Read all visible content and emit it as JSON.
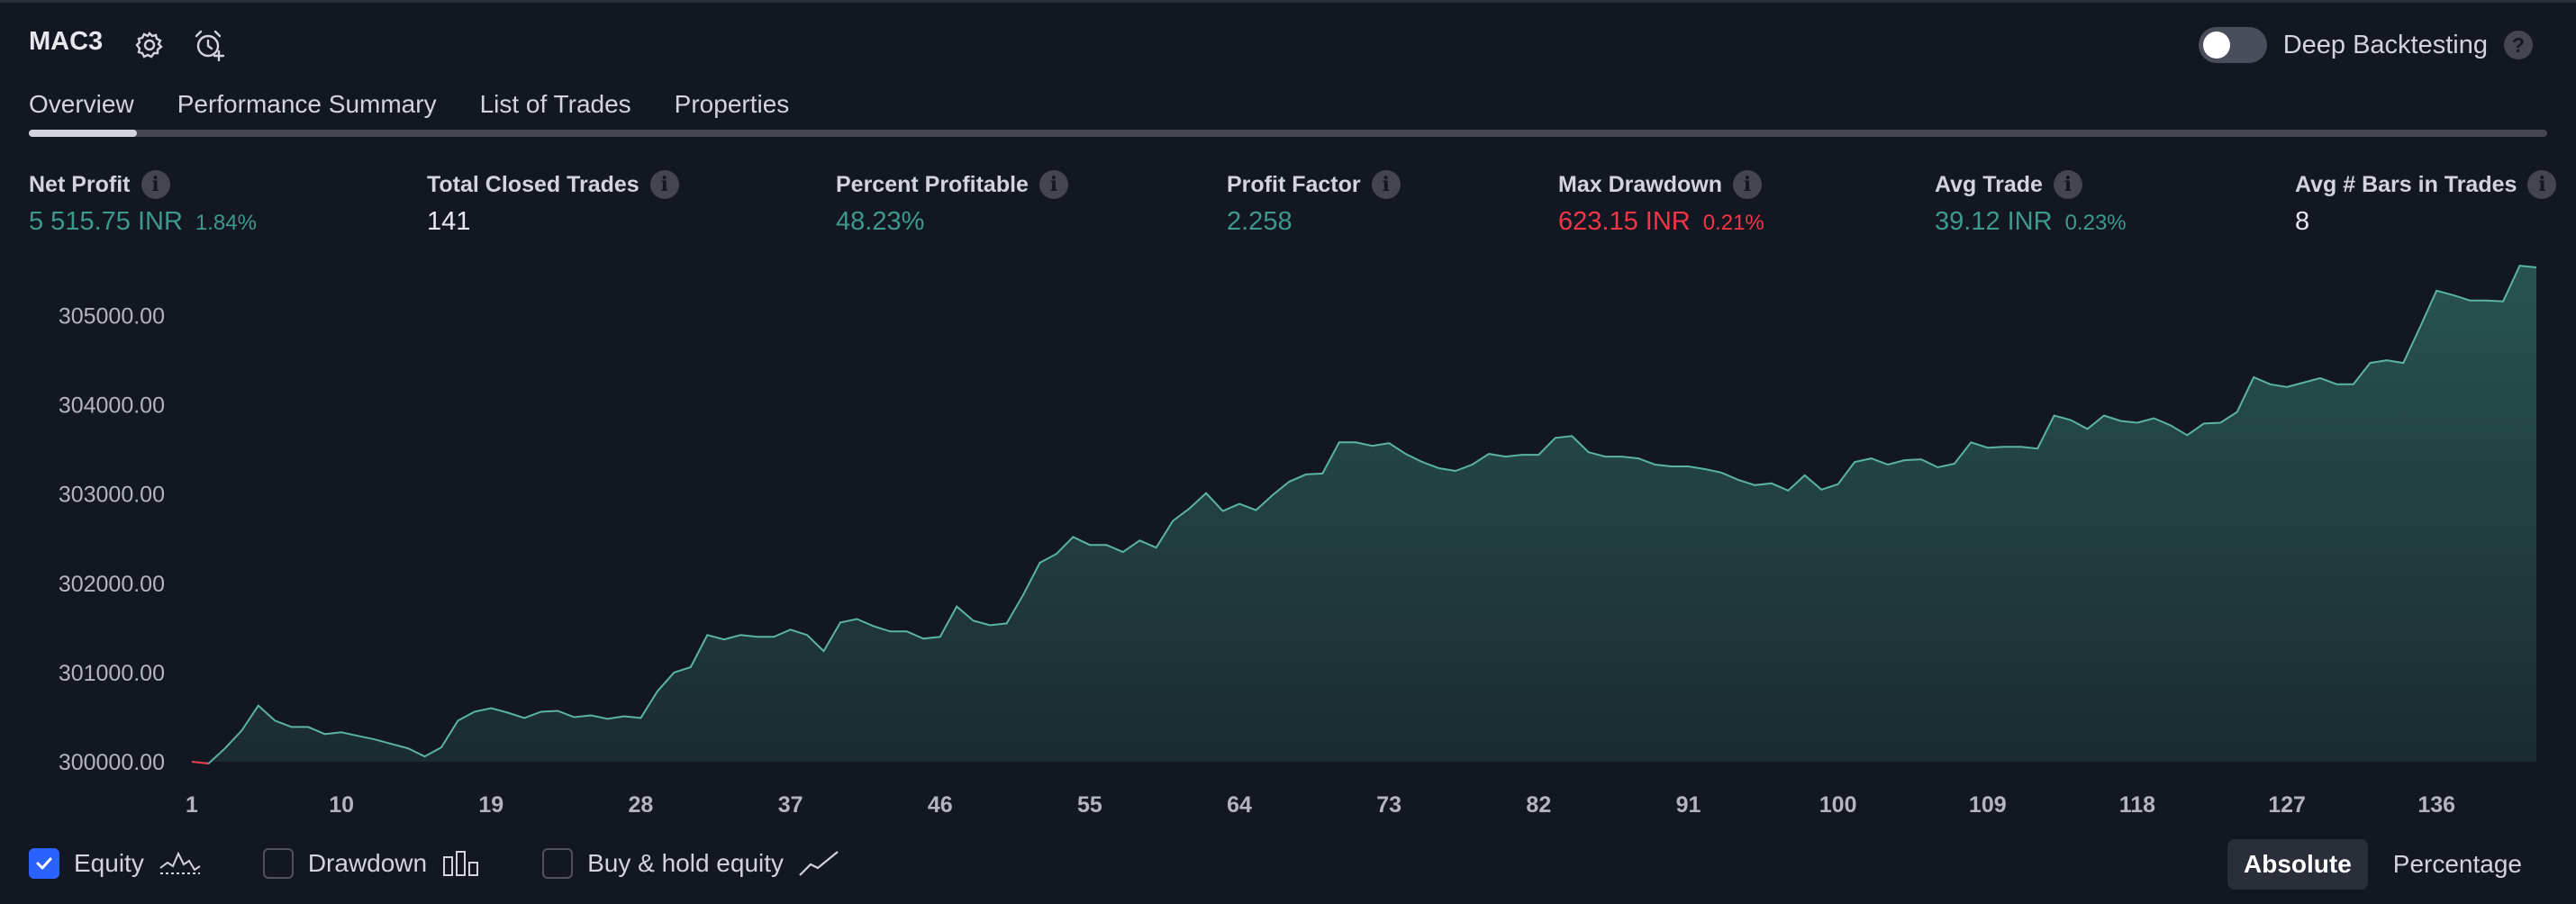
{
  "header": {
    "title": "MAC3",
    "settings_icon": "gear-icon",
    "alert_icon": "add-alarm-icon",
    "deep_backtesting_label": "Deep Backtesting",
    "deep_backtesting_enabled": false,
    "help_glyph": "?"
  },
  "tabs": [
    {
      "label": "Overview",
      "active": true
    },
    {
      "label": "Performance Summary",
      "active": false
    },
    {
      "label": "List of Trades",
      "active": false
    },
    {
      "label": "Properties",
      "active": false
    }
  ],
  "stats": [
    {
      "label": "Net Profit",
      "value": "5 515.75 INR",
      "sub": "1.84%",
      "tone": "green"
    },
    {
      "label": "Total Closed Trades",
      "value": "141",
      "sub": "",
      "tone": "white"
    },
    {
      "label": "Percent Profitable",
      "value": "48.23%",
      "sub": "",
      "tone": "green"
    },
    {
      "label": "Profit Factor",
      "value": "2.258",
      "sub": "",
      "tone": "green"
    },
    {
      "label": "Max Drawdown",
      "value": "623.15 INR",
      "sub": "0.21%",
      "tone": "red"
    },
    {
      "label": "Avg Trade",
      "value": "39.12 INR",
      "sub": "0.23%",
      "tone": "green"
    },
    {
      "label": "Avg # Bars in Trades",
      "value": "8",
      "sub": "",
      "tone": "white"
    }
  ],
  "info_glyph": "i",
  "chart_data": {
    "type": "area",
    "title": "",
    "xlabel": "",
    "ylabel": "",
    "ylim": [
      300000,
      305500
    ],
    "xlim": [
      1,
      142
    ],
    "x_ticks": [
      "1",
      "10",
      "19",
      "28",
      "37",
      "46",
      "55",
      "64",
      "73",
      "82",
      "91",
      "100",
      "109",
      "118",
      "127",
      "136"
    ],
    "y_ticks": [
      "300000.00",
      "301000.00",
      "302000.00",
      "303000.00",
      "304000.00",
      "305000.00"
    ],
    "series": [
      {
        "name": "Equity",
        "color": "#5bb3a2",
        "x": [
          1,
          2,
          3,
          4,
          5,
          6,
          7,
          8,
          9,
          10,
          11,
          12,
          13,
          14,
          15,
          16,
          17,
          18,
          19,
          20,
          21,
          22,
          23,
          24,
          25,
          26,
          27,
          28,
          29,
          30,
          31,
          32,
          33,
          34,
          35,
          36,
          37,
          38,
          39,
          40,
          41,
          42,
          43,
          44,
          45,
          46,
          47,
          48,
          49,
          50,
          51,
          52,
          53,
          54,
          55,
          56,
          57,
          58,
          59,
          60,
          61,
          62,
          63,
          64,
          65,
          66,
          67,
          68,
          69,
          70,
          71,
          72,
          73,
          74,
          75,
          76,
          77,
          78,
          79,
          80,
          81,
          82,
          83,
          84,
          85,
          86,
          87,
          88,
          89,
          90,
          91,
          92,
          93,
          94,
          95,
          96,
          97,
          98,
          99,
          100,
          101,
          102,
          103,
          104,
          105,
          106,
          107,
          108,
          109,
          110,
          111,
          112,
          113,
          114,
          115,
          116,
          117,
          118,
          119,
          120,
          121,
          122,
          123,
          124,
          125,
          126,
          127,
          128,
          129,
          130,
          131,
          132,
          133,
          134,
          135,
          136,
          137,
          138,
          139,
          140,
          141,
          142
        ],
        "values": [
          300000,
          299980,
          300150,
          300350,
          300630,
          300460,
          300390,
          300390,
          300310,
          300330,
          300290,
          300250,
          300200,
          300150,
          300060,
          300160,
          300460,
          300560,
          300600,
          300550,
          300490,
          300560,
          300570,
          300500,
          300520,
          300480,
          300510,
          300490,
          300790,
          301000,
          301060,
          301420,
          301370,
          301420,
          301400,
          301400,
          301480,
          301420,
          301240,
          301560,
          301600,
          301520,
          301460,
          301460,
          301380,
          301400,
          301740,
          301580,
          301530,
          301550,
          301870,
          302230,
          302330,
          302520,
          302430,
          302430,
          302350,
          302480,
          302400,
          302700,
          302840,
          303010,
          302810,
          302890,
          302820,
          302990,
          303140,
          303220,
          303230,
          303580,
          303580,
          303540,
          303570,
          303450,
          303360,
          303290,
          303260,
          303330,
          303450,
          303420,
          303440,
          303440,
          303630,
          303650,
          303470,
          303420,
          303420,
          303400,
          303330,
          303310,
          303310,
          303280,
          303240,
          303160,
          303100,
          303120,
          303040,
          303210,
          303050,
          303110,
          303360,
          303400,
          303330,
          303380,
          303390,
          303300,
          303340,
          303580,
          303520,
          303530,
          303530,
          303510,
          303880,
          303830,
          303730,
          303880,
          303820,
          303800,
          303850,
          303770,
          303660,
          303790,
          303800,
          303920,
          304310,
          304230,
          304200,
          304250,
          304300,
          304230,
          304230,
          304470,
          304500,
          304470,
          304870,
          305280,
          305230,
          305170,
          305170,
          305160,
          305560,
          305540
        ]
      }
    ],
    "drawdown_segment_color": "#f23645",
    "grid": false,
    "legend": "bottom-left"
  },
  "legend": [
    {
      "label": "Equity",
      "checked": true,
      "icon": "equity-line-icon"
    },
    {
      "label": "Drawdown",
      "checked": false,
      "icon": "drawdown-bars-icon"
    },
    {
      "label": "Buy & hold equity",
      "checked": false,
      "icon": "buy-hold-line-icon"
    }
  ],
  "modes": [
    {
      "label": "Absolute",
      "active": true
    },
    {
      "label": "Percentage",
      "active": false
    }
  ]
}
